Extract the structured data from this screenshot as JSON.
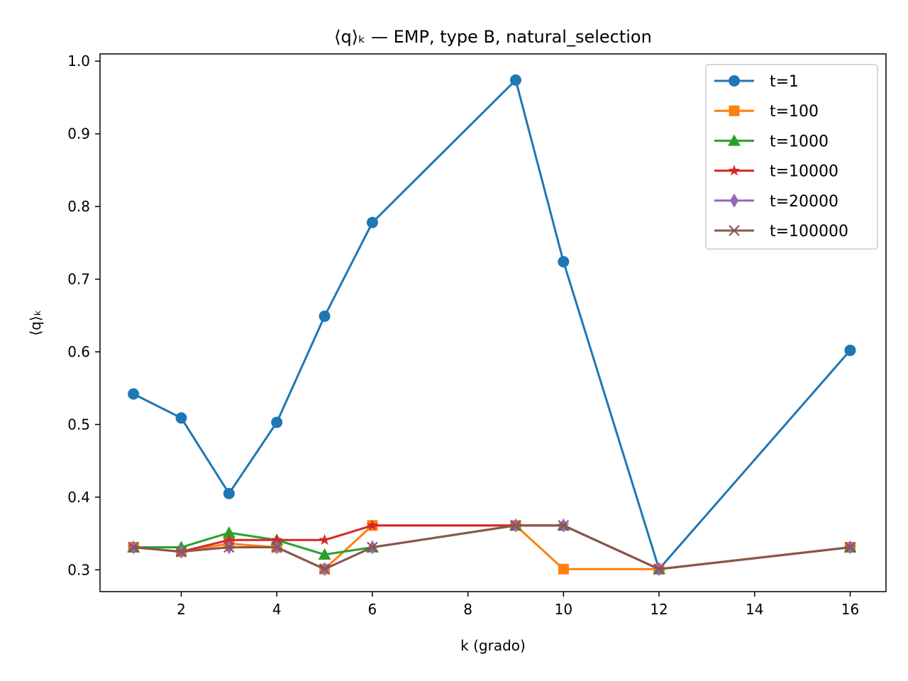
{
  "chart_data": {
    "type": "line",
    "title": "⟨q⟩ₖ — EMP, type B, natural_selection",
    "xlabel": "k (grado)",
    "ylabel": "⟨q⟩ₖ",
    "xlim": [
      0.3,
      16.75
    ],
    "ylim": [
      0.27,
      1.01
    ],
    "xticks": [
      2,
      4,
      6,
      8,
      10,
      12,
      14,
      16
    ],
    "yticks": [
      0.3,
      0.4,
      0.5,
      0.6,
      0.7,
      0.8,
      0.9,
      1.0
    ],
    "grid": false,
    "legend_position": "top-right",
    "x": [
      1,
      2,
      3,
      4,
      5,
      6,
      9,
      10,
      12,
      16
    ],
    "series": [
      {
        "name": "t=1",
        "color": "#1f77b4",
        "marker": "circle",
        "values": [
          0.542,
          0.509,
          0.405,
          0.503,
          0.649,
          0.778,
          0.974,
          0.724,
          0.301,
          0.602
        ]
      },
      {
        "name": "t=100",
        "color": "#ff7f0e",
        "marker": "square",
        "values": [
          0.331,
          0.325,
          0.336,
          0.331,
          0.301,
          0.361,
          0.361,
          0.301,
          0.301,
          0.331
        ]
      },
      {
        "name": "t=1000",
        "color": "#2ca02c",
        "marker": "triangle",
        "values": [
          0.331,
          0.331,
          0.351,
          0.341,
          0.321,
          0.331,
          0.361,
          0.361,
          0.301,
          0.331
        ]
      },
      {
        "name": "t=10000",
        "color": "#d62728",
        "marker": "star",
        "values": [
          0.331,
          0.325,
          0.341,
          0.341,
          0.341,
          0.361,
          0.361,
          0.361,
          0.301,
          0.331
        ]
      },
      {
        "name": "t=20000",
        "color": "#9467bd",
        "marker": "thin-diamond",
        "values": [
          0.331,
          0.325,
          0.331,
          0.331,
          0.301,
          0.331,
          0.361,
          0.361,
          0.301,
          0.331
        ]
      },
      {
        "name": "t=100000",
        "color": "#8c564b",
        "marker": "x",
        "values": [
          0.331,
          0.325,
          0.331,
          0.331,
          0.301,
          0.331,
          0.361,
          0.361,
          0.301,
          0.331
        ]
      }
    ]
  }
}
